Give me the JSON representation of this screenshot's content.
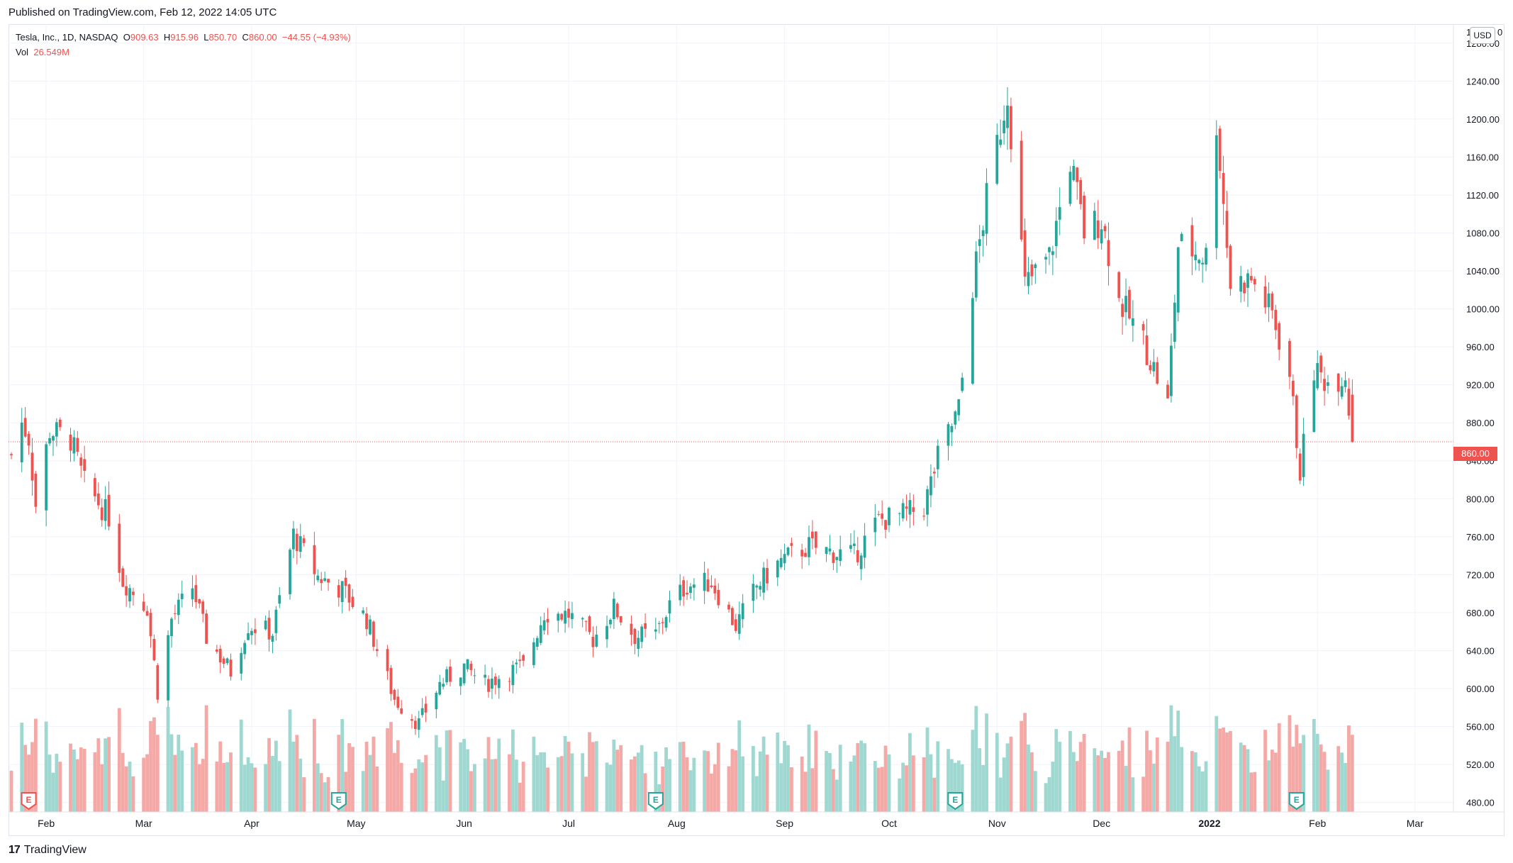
{
  "header": {
    "publish_note": "Published on TradingView.com, Feb 12, 2022 14:05 UTC"
  },
  "legend": {
    "symbol": "Tesla, Inc., 1D, NASDAQ",
    "open_label": "O",
    "open_value": "909.63",
    "high_label": "H",
    "high_value": "915.96",
    "low_label": "L",
    "low_value": "850.70",
    "close_label": "C",
    "close_value": "860.00",
    "change": "−44.55 (−4.93%)",
    "vol_label": "Vol",
    "vol_value": "26.549M"
  },
  "price_axis": {
    "currency": "USD",
    "last_price_label": "860.00",
    "top_partial_label": "1",
    "top_partial_label_tail": "0"
  },
  "footer": {
    "logo_mark": "17",
    "brand": "TradingView"
  },
  "colors": {
    "up": "#26a69a",
    "down": "#ef5350",
    "vol_up": "#9fd8d1",
    "vol_down": "#f5a9a7",
    "grid": "#f0f3fa"
  },
  "earnings_markers": [
    {
      "date": "2021-01-27",
      "label": "E",
      "color": "#ef5350"
    },
    {
      "date": "2021-04-26",
      "label": "E",
      "color": "#26a69a"
    },
    {
      "date": "2021-07-26",
      "label": "E",
      "color": "#26a69a"
    },
    {
      "date": "2021-10-20",
      "label": "E",
      "color": "#26a69a"
    },
    {
      "date": "2022-01-26",
      "label": "E",
      "color": "#26a69a"
    }
  ],
  "chart_data": {
    "type": "candlestick",
    "title": "",
    "ylabel": "",
    "xlabel": "",
    "currency": "USD",
    "ylim": [
      470,
      1300
    ],
    "y_ticks": [
      480,
      520,
      560,
      600,
      640,
      680,
      720,
      760,
      800,
      840,
      880,
      920,
      960,
      1000,
      1040,
      1080,
      1120,
      1160,
      1200,
      1240,
      1280
    ],
    "x_ticks": [
      {
        "label": "Feb",
        "date": "2021-02-01"
      },
      {
        "label": "Mar",
        "date": "2021-03-01"
      },
      {
        "label": "Apr",
        "date": "2021-04-01"
      },
      {
        "label": "May",
        "date": "2021-05-01"
      },
      {
        "label": "Jun",
        "date": "2021-06-01"
      },
      {
        "label": "Jul",
        "date": "2021-07-01"
      },
      {
        "label": "Aug",
        "date": "2021-08-01"
      },
      {
        "label": "Sep",
        "date": "2021-09-01"
      },
      {
        "label": "Oct",
        "date": "2021-10-01"
      },
      {
        "label": "Nov",
        "date": "2021-11-01"
      },
      {
        "label": "Dec",
        "date": "2021-12-01"
      },
      {
        "label": "2022",
        "date": "2022-01-01"
      },
      {
        "label": "Feb",
        "date": "2022-02-01"
      },
      {
        "label": "Mar",
        "date": "2022-03-01"
      }
    ],
    "date_range": [
      "2021-01-22",
      "2022-03-10"
    ],
    "volume_range_M": [
      0,
      120
    ],
    "series": [
      {
        "name": "Price",
        "ohlc_anchors": [
          {
            "date": "2021-01-22",
            "close": 846
          },
          {
            "date": "2021-01-25",
            "close": 880
          },
          {
            "date": "2021-01-27",
            "close": 864
          },
          {
            "date": "2021-01-29",
            "close": 793
          },
          {
            "date": "2021-02-02",
            "close": 872
          },
          {
            "date": "2021-02-08",
            "close": 863
          },
          {
            "date": "2021-02-12",
            "close": 816
          },
          {
            "date": "2021-02-19",
            "close": 781
          },
          {
            "date": "2021-02-23",
            "close": 714
          },
          {
            "date": "2021-03-02",
            "close": 686
          },
          {
            "date": "2021-03-05",
            "close": 597
          },
          {
            "date": "2021-03-09",
            "close": 673
          },
          {
            "date": "2021-03-15",
            "close": 707
          },
          {
            "date": "2021-03-19",
            "close": 654
          },
          {
            "date": "2021-03-26",
            "close": 618
          },
          {
            "date": "2021-03-31",
            "close": 667
          },
          {
            "date": "2021-04-07",
            "close": 659
          },
          {
            "date": "2021-04-13",
            "close": 762
          },
          {
            "date": "2021-04-20",
            "close": 718
          },
          {
            "date": "2021-04-27",
            "close": 704
          },
          {
            "date": "2021-05-04",
            "close": 673
          },
          {
            "date": "2021-05-12",
            "close": 589
          },
          {
            "date": "2021-05-19",
            "close": 563
          },
          {
            "date": "2021-05-25",
            "close": 605
          },
          {
            "date": "2021-06-01",
            "close": 623
          },
          {
            "date": "2021-06-07",
            "close": 605
          },
          {
            "date": "2021-06-14",
            "close": 618
          },
          {
            "date": "2021-06-18",
            "close": 623
          },
          {
            "date": "2021-06-24",
            "close": 680
          },
          {
            "date": "2021-07-01",
            "close": 678
          },
          {
            "date": "2021-07-08",
            "close": 652
          },
          {
            "date": "2021-07-14",
            "close": 685
          },
          {
            "date": "2021-07-20",
            "close": 655
          },
          {
            "date": "2021-07-26",
            "close": 657
          },
          {
            "date": "2021-07-30",
            "close": 688
          },
          {
            "date": "2021-08-04",
            "close": 709
          },
          {
            "date": "2021-08-11",
            "close": 712
          },
          {
            "date": "2021-08-18",
            "close": 666
          },
          {
            "date": "2021-08-24",
            "close": 708
          },
          {
            "date": "2021-08-31",
            "close": 735
          },
          {
            "date": "2021-09-08",
            "close": 750
          },
          {
            "date": "2021-09-14",
            "close": 744
          },
          {
            "date": "2021-09-21",
            "close": 740
          },
          {
            "date": "2021-09-28",
            "close": 777
          },
          {
            "date": "2021-10-04",
            "close": 782
          },
          {
            "date": "2021-10-11",
            "close": 791
          },
          {
            "date": "2021-10-15",
            "close": 843
          },
          {
            "date": "2021-10-21",
            "close": 894
          },
          {
            "date": "2021-10-25",
            "close": 1025
          },
          {
            "date": "2021-10-29",
            "close": 1115
          },
          {
            "date": "2021-11-04",
            "close": 1230
          },
          {
            "date": "2021-11-09",
            "close": 1024
          },
          {
            "date": "2021-11-16",
            "close": 1054
          },
          {
            "date": "2021-11-22",
            "close": 1157
          },
          {
            "date": "2021-11-26",
            "close": 1081
          },
          {
            "date": "2021-12-01",
            "close": 1095
          },
          {
            "date": "2021-12-06",
            "close": 1009
          },
          {
            "date": "2021-12-13",
            "close": 966
          },
          {
            "date": "2021-12-20",
            "close": 899
          },
          {
            "date": "2021-12-23",
            "close": 1067
          },
          {
            "date": "2021-12-31",
            "close": 1056
          },
          {
            "date": "2022-01-03",
            "close": 1199
          },
          {
            "date": "2022-01-07",
            "close": 1026
          },
          {
            "date": "2022-01-13",
            "close": 1031
          },
          {
            "date": "2022-01-19",
            "close": 995
          },
          {
            "date": "2022-01-24",
            "close": 930
          },
          {
            "date": "2022-01-27",
            "close": 829
          },
          {
            "date": "2022-01-31",
            "close": 936
          },
          {
            "date": "2022-02-04",
            "close": 923
          },
          {
            "date": "2022-02-09",
            "close": 932
          },
          {
            "date": "2022-02-11",
            "close": 860
          }
        ]
      }
    ]
  }
}
